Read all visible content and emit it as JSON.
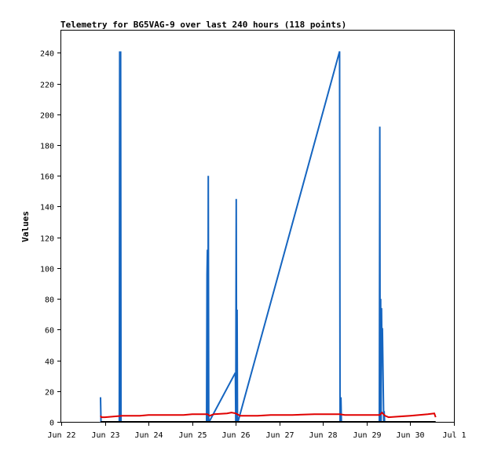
{
  "chart_data": {
    "type": "line",
    "title": "Telemetry for BG5VAG-9 over last 240 hours (118 points)",
    "xlabel": "",
    "ylabel": "Values",
    "x_ticks": [
      "Jun 22",
      "Jun 23",
      "Jun 24",
      "Jun 25",
      "Jun 26",
      "Jun 27",
      "Jun 28",
      "Jun 29",
      "Jun 30",
      "Jul 1"
    ],
    "xlim": [
      0,
      9
    ],
    "ylim": [
      0,
      255
    ],
    "y_ticks": [
      0,
      20,
      40,
      60,
      80,
      100,
      120,
      140,
      160,
      180,
      200,
      220,
      240
    ],
    "grid": false,
    "legend": "none",
    "series": [
      {
        "color": "#1565c0",
        "points": [
          [
            0.9,
            16
          ],
          [
            0.91,
            0
          ],
          [
            1.33,
            0
          ],
          [
            1.34,
            241
          ],
          [
            1.35,
            0
          ],
          [
            1.36,
            241
          ],
          [
            1.37,
            0
          ],
          [
            3.33,
            0
          ],
          [
            3.34,
            96
          ],
          [
            3.35,
            112
          ],
          [
            3.36,
            0
          ],
          [
            3.37,
            160
          ],
          [
            3.38,
            0
          ],
          [
            3.39,
            0
          ],
          [
            3.99,
            32
          ],
          [
            4.0,
            0
          ],
          [
            4.01,
            145
          ],
          [
            4.02,
            0
          ],
          [
            4.03,
            73
          ],
          [
            4.04,
            0
          ],
          [
            4.05,
            0
          ],
          [
            6.38,
            241
          ],
          [
            6.39,
            0
          ],
          [
            6.4,
            0
          ],
          [
            6.41,
            16
          ],
          [
            6.42,
            0
          ],
          [
            7.29,
            0
          ],
          [
            7.3,
            192
          ],
          [
            7.31,
            0
          ],
          [
            7.32,
            80
          ],
          [
            7.33,
            0
          ],
          [
            7.34,
            74
          ],
          [
            7.35,
            47
          ],
          [
            7.36,
            61
          ],
          [
            7.38,
            21
          ],
          [
            7.39,
            0
          ],
          [
            7.4,
            7
          ],
          [
            7.41,
            0
          ]
        ]
      },
      {
        "color": "#e00000",
        "points": [
          [
            0.9,
            4
          ],
          [
            0.92,
            3
          ],
          [
            1.0,
            3
          ],
          [
            1.4,
            4
          ],
          [
            1.8,
            4
          ],
          [
            2.0,
            4.5
          ],
          [
            2.5,
            4.5
          ],
          [
            2.8,
            4.5
          ],
          [
            3.0,
            5
          ],
          [
            3.35,
            5
          ],
          [
            3.4,
            4
          ],
          [
            3.5,
            5
          ],
          [
            3.8,
            5.5
          ],
          [
            3.9,
            6
          ],
          [
            4.0,
            5.5
          ],
          [
            4.1,
            4
          ],
          [
            4.5,
            4
          ],
          [
            4.8,
            4.5
          ],
          [
            5.3,
            4.5
          ],
          [
            5.8,
            5
          ],
          [
            6.38,
            5
          ],
          [
            6.5,
            4.5
          ],
          [
            7.0,
            4.5
          ],
          [
            7.3,
            4.5
          ],
          [
            7.35,
            6
          ],
          [
            7.42,
            4
          ],
          [
            7.5,
            3
          ],
          [
            8.0,
            4
          ],
          [
            8.4,
            5
          ],
          [
            8.55,
            5.5
          ],
          [
            8.58,
            3
          ]
        ]
      },
      {
        "color": "#000000",
        "points": [
          [
            0.9,
            0
          ],
          [
            8.58,
            0
          ]
        ]
      }
    ]
  }
}
